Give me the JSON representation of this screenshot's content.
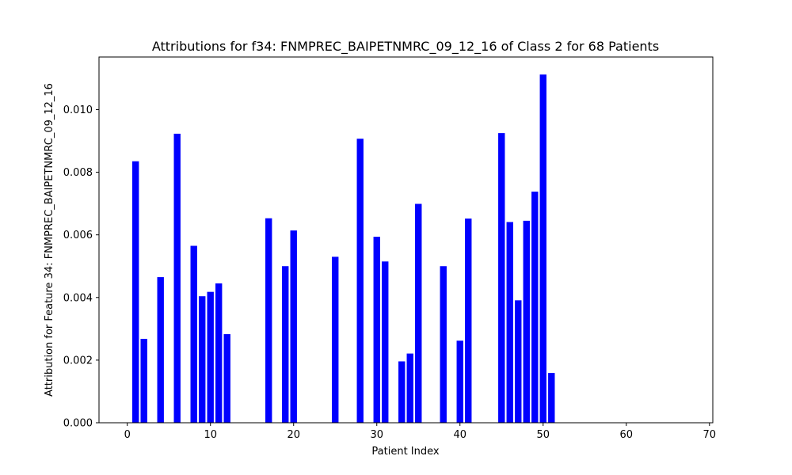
{
  "chart_data": {
    "type": "bar",
    "title": "Attributions for f34: FNMPREC_BAIPETNMRC_09_12_16 of Class 2 for 68 Patients",
    "xlabel": "Patient Index",
    "ylabel": "Attribution for Feature 34: FNMPREC_BAIPETNMRC_09_12_16",
    "xlim": [
      -3.4,
      70.4
    ],
    "ylim": [
      0,
      0.01168
    ],
    "xticks": [
      0,
      10,
      20,
      30,
      40,
      50,
      60,
      70
    ],
    "yticks": [
      0.0,
      0.002,
      0.004,
      0.006,
      0.008,
      0.01
    ],
    "ytick_labels": [
      "0.000",
      "0.002",
      "0.004",
      "0.006",
      "0.008",
      "0.010"
    ],
    "bar_color": "#0000ff",
    "grid": false,
    "x": [
      0,
      1,
      2,
      3,
      4,
      5,
      6,
      7,
      8,
      9,
      10,
      11,
      12,
      13,
      14,
      15,
      16,
      17,
      18,
      19,
      20,
      21,
      22,
      23,
      24,
      25,
      26,
      27,
      28,
      29,
      30,
      31,
      32,
      33,
      34,
      35,
      36,
      37,
      38,
      39,
      40,
      41,
      42,
      43,
      44,
      45,
      46,
      47,
      48,
      49,
      50,
      51,
      52,
      53,
      54,
      55,
      56,
      57,
      58,
      59,
      60,
      61,
      62,
      63,
      64,
      65,
      66,
      67
    ],
    "values": [
      0,
      0.00835,
      0.00268,
      0,
      0.00465,
      0,
      0.00923,
      0,
      0.00565,
      0.00404,
      0.00418,
      0.00445,
      0.00283,
      0,
      0,
      0,
      0,
      0.00653,
      0,
      0.005,
      0.00614,
      0,
      0,
      0,
      0,
      0.0053,
      0,
      0,
      0.00907,
      0,
      0.00594,
      0.00515,
      0,
      0.00196,
      0.00221,
      0.00699,
      0,
      0,
      0.005,
      0,
      0.00262,
      0.00652,
      0,
      0,
      0,
      0.00925,
      0.00641,
      0.00391,
      0.00645,
      0.00738,
      0.01112,
      0.00159,
      0,
      0,
      0,
      0,
      0,
      0,
      0,
      0,
      0,
      0,
      0,
      0,
      0,
      0,
      0,
      0
    ]
  }
}
